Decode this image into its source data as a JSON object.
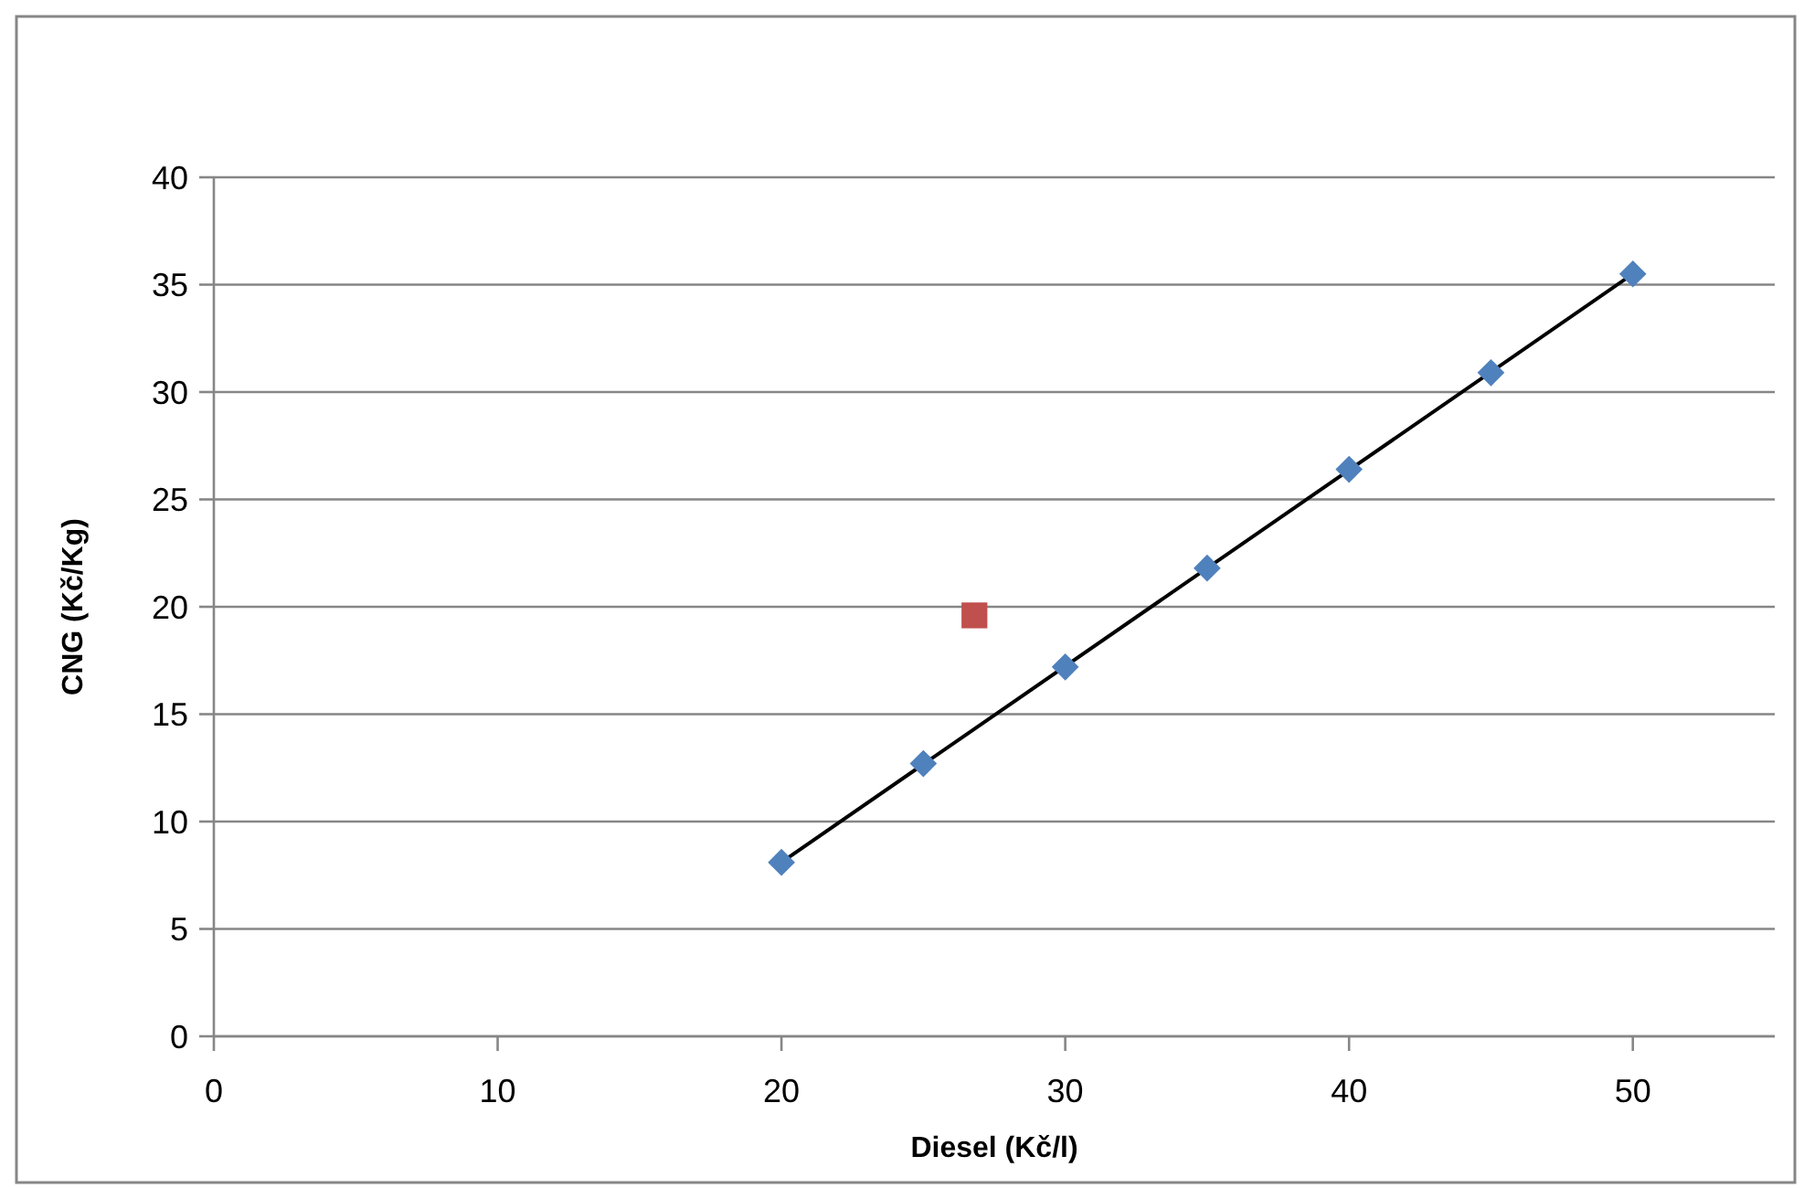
{
  "chart_data": {
    "type": "scatter",
    "xlabel": "Diesel (Kč/l)",
    "ylabel": "CNG (Kč/Kg)",
    "xlim": [
      0,
      55
    ],
    "xticks": [
      0,
      10,
      20,
      30,
      40,
      50
    ],
    "ylim": [
      0,
      40
    ],
    "yticks": [
      0,
      5,
      10,
      15,
      20,
      25,
      30,
      35,
      40
    ],
    "grid": "y",
    "series": [
      {
        "type": "line",
        "color": "#000000",
        "marker": "none",
        "line_style": "solid",
        "x": [
          20,
          50
        ],
        "values": [
          8.1,
          35.5
        ]
      },
      {
        "color": "#4f81bd",
        "marker": "diamond",
        "x": [
          20,
          25,
          30,
          35,
          40,
          45,
          50
        ],
        "values": [
          8.1,
          12.7,
          17.2,
          21.8,
          26.4,
          30.9,
          35.5
        ]
      },
      {
        "color": "#c0504d",
        "marker": "square",
        "x": [
          26.8
        ],
        "values": [
          19.6
        ]
      }
    ]
  }
}
